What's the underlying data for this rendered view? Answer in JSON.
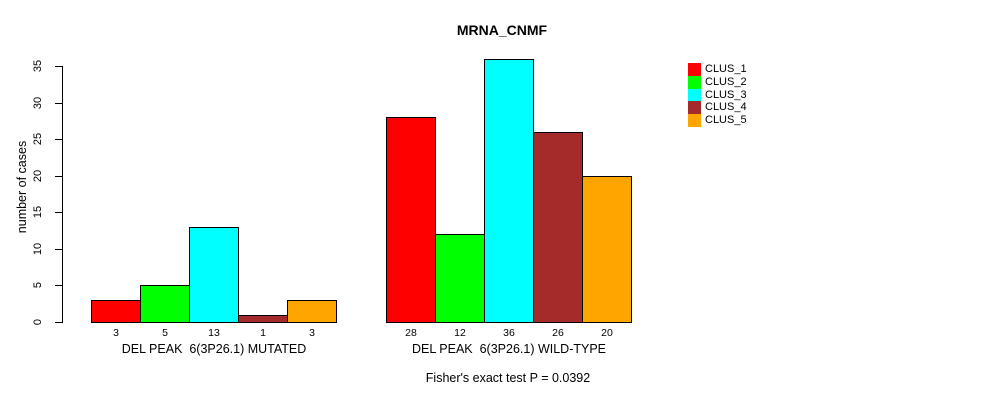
{
  "chart_data": {
    "type": "bar",
    "title": "MRNA_CNMF",
    "ylabel": "number of cases",
    "ylim": [
      0,
      36
    ],
    "yticks": [
      0,
      5,
      10,
      15,
      20,
      25,
      30,
      35
    ],
    "grid": false,
    "legend_position": "right",
    "bar_value_labels_shown": true,
    "categories": [
      "DEL PEAK  6(3P26.1) MUTATED",
      "DEL PEAK  6(3P26.1) WILD-TYPE"
    ],
    "series": [
      {
        "name": "CLUS_1",
        "color": "#FF0000",
        "values": [
          3,
          28
        ]
      },
      {
        "name": "CLUS_2",
        "color": "#00FF00",
        "values": [
          5,
          12
        ]
      },
      {
        "name": "CLUS_3",
        "color": "#00FFFF",
        "values": [
          13,
          36
        ]
      },
      {
        "name": "CLUS_4",
        "color": "#A52A2A",
        "values": [
          1,
          26
        ]
      },
      {
        "name": "CLUS_5",
        "color": "#FFA500",
        "values": [
          3,
          20
        ]
      }
    ],
    "annotation": "Fisher's exact test P = 0.0392"
  },
  "colors": {
    "axis": "#000000",
    "background": "#FFFFFF",
    "bar_border": "#000000"
  }
}
